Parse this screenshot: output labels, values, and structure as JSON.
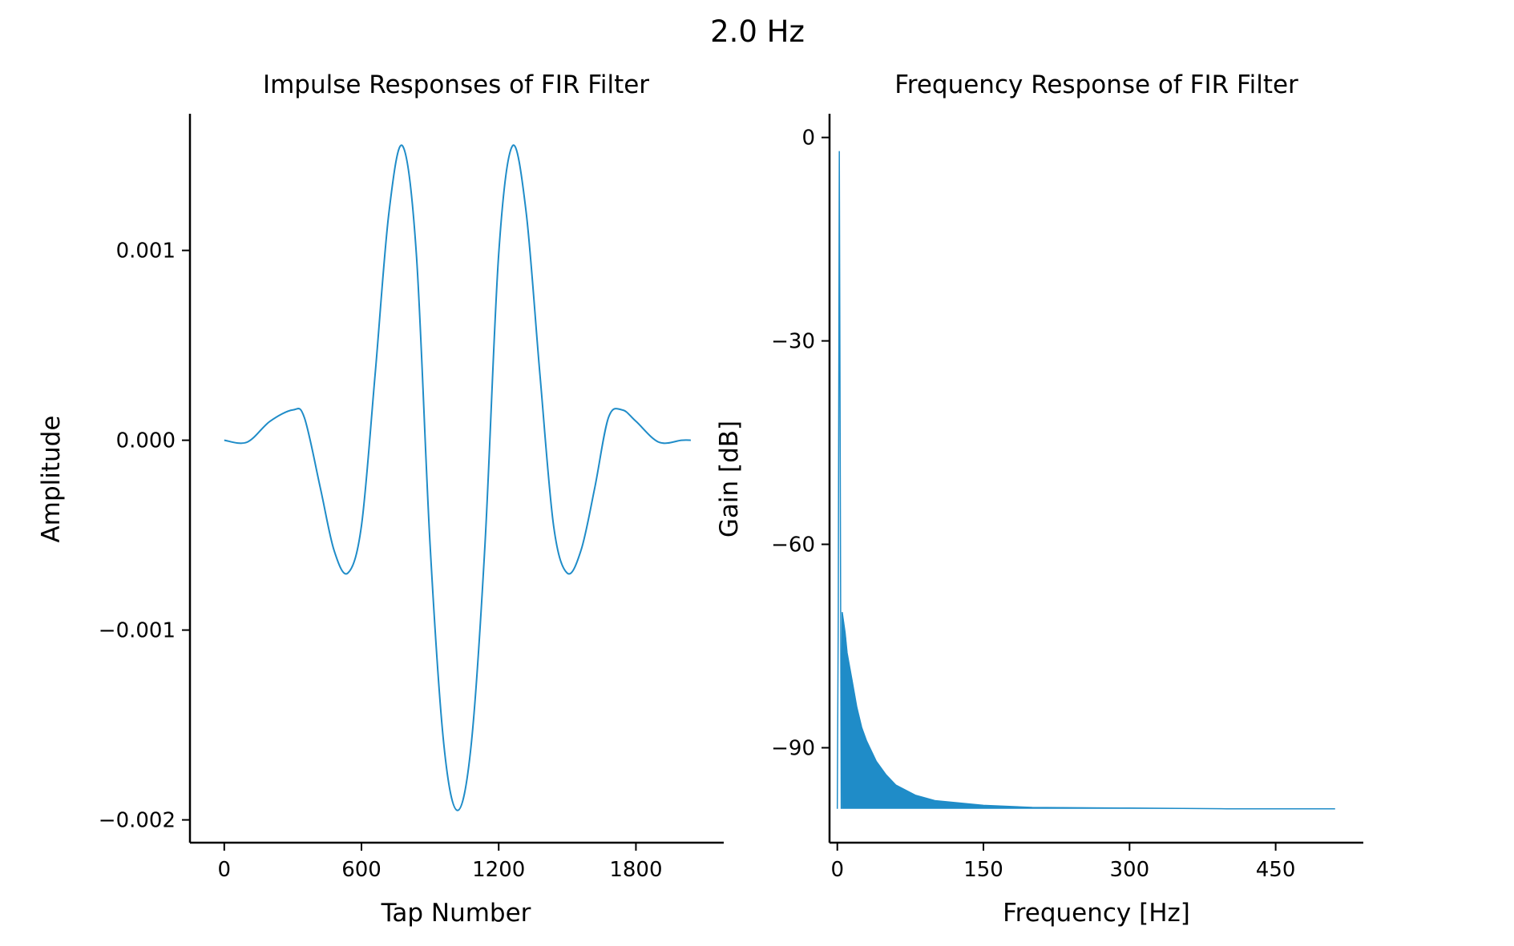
{
  "figure": {
    "suptitle": "2.0 Hz"
  },
  "colors": {
    "line": "#1f8cc8",
    "axis": "#000000",
    "background": "#ffffff"
  },
  "chart_data": [
    {
      "type": "line",
      "title": "Impulse Responses of FIR Filter",
      "xlabel": "Tap Number",
      "ylabel": "Amplitude",
      "xlim": [
        -150,
        2184
      ],
      "ylim": [
        -0.00212,
        0.00172
      ],
      "xticks": [
        0,
        600,
        1200,
        1800
      ],
      "xtick_labels": [
        "0",
        "600",
        "1200",
        "1800"
      ],
      "yticks": [
        -0.002,
        -0.001,
        0.0,
        0.001
      ],
      "ytick_labels": [
        "−0.002",
        "−0.001",
        "0.000",
        "0.001"
      ],
      "grid": false,
      "series": [
        {
          "x": [
            0,
            100,
            200,
            300,
            350,
            420,
            480,
            540,
            600,
            660,
            720,
            780,
            840,
            900,
            960,
            1020,
            1080,
            1140,
            1200,
            1260,
            1320,
            1380,
            1440,
            1500,
            1560,
            1620,
            1680,
            1740,
            1800,
            1900,
            2000,
            2040
          ],
          "y": [
            0.0,
            -1e-05,
            0.0001,
            0.00016,
            0.00012,
            -0.00025,
            -0.00058,
            -0.0007,
            -0.00045,
            0.00035,
            0.0012,
            0.00155,
            0.00098,
            -0.00055,
            -0.0016,
            -0.00195,
            -0.0016,
            -0.00055,
            0.00098,
            0.00155,
            0.0012,
            0.00035,
            -0.00045,
            -0.0007,
            -0.00058,
            -0.00025,
            0.00012,
            0.00016,
            0.0001,
            -1e-05,
            0.0,
            0.0
          ]
        }
      ]
    },
    {
      "type": "line",
      "title": "Frequency Response of FIR Filter",
      "xlabel": "Frequency [Hz]",
      "ylabel": "Gain [dB]",
      "xlim": [
        -8,
        540
      ],
      "ylim": [
        -104,
        3.5
      ],
      "xticks": [
        0,
        150,
        300,
        450
      ],
      "xtick_labels": [
        "0",
        "150",
        "300",
        "450"
      ],
      "yticks": [
        0,
        -30,
        -60,
        -90
      ],
      "ytick_labels": [
        "0",
        "−30",
        "−60",
        "−90"
      ],
      "grid": false,
      "series": [
        {
          "x": [
            0,
            1,
            2,
            3,
            4,
            5,
            6,
            8,
            10,
            15,
            20,
            25,
            30,
            40,
            50,
            60,
            80,
            100,
            150,
            200,
            300,
            400,
            511
          ],
          "y": [
            -99,
            -70,
            -2,
            -50,
            -99,
            -70,
            -71,
            -73,
            -76,
            -80,
            -84,
            -87,
            -89,
            -92,
            -94,
            -95.5,
            -97,
            -97.8,
            -98.5,
            -98.8,
            -98.9,
            -99.0,
            -99.0
          ]
        }
      ]
    }
  ]
}
